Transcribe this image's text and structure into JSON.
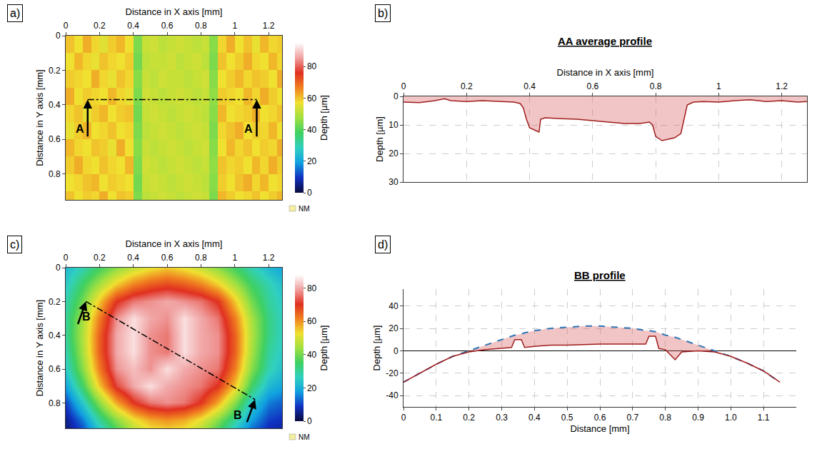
{
  "chart_data": [
    {
      "panel": "a)",
      "type": "heatmap",
      "x_label": "Distance in X axis [mm]",
      "y_label": "Distance in Y axis [mm]",
      "xlim": [
        0,
        1.28
      ],
      "ylim": [
        0.95,
        0
      ],
      "xticks": [
        0,
        0.2,
        0.4,
        0.6,
        0.8,
        1,
        1.2
      ],
      "yticks": [
        0,
        0.2,
        0.4,
        0.6,
        0.8
      ],
      "x": [
        0.025,
        0.075,
        0.125,
        0.175,
        0.225,
        0.275,
        0.325,
        0.375,
        0.425,
        0.475,
        0.525,
        0.575,
        0.625,
        0.675,
        0.725,
        0.775,
        0.825,
        0.875,
        0.925,
        0.975,
        1.025,
        1.075,
        1.125,
        1.175,
        1.225,
        1.275
      ],
      "y": [
        0.05,
        0.15,
        0.25,
        0.35,
        0.45,
        0.55,
        0.65,
        0.75,
        0.85,
        0.95
      ],
      "z": [
        [
          60,
          57,
          62,
          58,
          55,
          59,
          61,
          57,
          44,
          52,
          53,
          51,
          52,
          53,
          52,
          51,
          52,
          45,
          58,
          62,
          57,
          60,
          56,
          61,
          58,
          59
        ],
        [
          57,
          61,
          58,
          56,
          60,
          58,
          57,
          59,
          43,
          51,
          52,
          52,
          53,
          51,
          52,
          53,
          51,
          44,
          60,
          57,
          59,
          62,
          58,
          57,
          61,
          58
        ],
        [
          59,
          58,
          57,
          62,
          58,
          56,
          60,
          58,
          45,
          52,
          51,
          53,
          52,
          52,
          51,
          52,
          53,
          45,
          57,
          59,
          61,
          58,
          60,
          59,
          57,
          62
        ],
        [
          62,
          57,
          59,
          58,
          57,
          61,
          58,
          56,
          44,
          53,
          52,
          51,
          52,
          53,
          52,
          51,
          52,
          46,
          59,
          58,
          57,
          61,
          58,
          62,
          59,
          57
        ],
        [
          58,
          60,
          56,
          59,
          61,
          57,
          59,
          60,
          43,
          52,
          53,
          52,
          51,
          52,
          53,
          52,
          51,
          45,
          61,
          57,
          58,
          59,
          62,
          57,
          58,
          60
        ],
        [
          56,
          59,
          61,
          57,
          58,
          60,
          57,
          58,
          44,
          51,
          52,
          53,
          52,
          51,
          52,
          53,
          52,
          44,
          58,
          60,
          62,
          57,
          59,
          58,
          61,
          57
        ],
        [
          61,
          58,
          57,
          60,
          59,
          56,
          62,
          57,
          45,
          52,
          51,
          52,
          53,
          52,
          51,
          52,
          53,
          45,
          57,
          61,
          58,
          60,
          57,
          59,
          58,
          62
        ],
        [
          59,
          62,
          58,
          57,
          60,
          58,
          57,
          61,
          44,
          53,
          52,
          51,
          52,
          53,
          52,
          51,
          52,
          46,
          60,
          58,
          59,
          57,
          61,
          58,
          62,
          59
        ],
        [
          57,
          58,
          60,
          61,
          57,
          59,
          58,
          57,
          43,
          52,
          53,
          52,
          51,
          52,
          53,
          52,
          51,
          45,
          59,
          57,
          60,
          62,
          58,
          61,
          57,
          58
        ],
        [
          60,
          57,
          59,
          58,
          62,
          57,
          60,
          59,
          44,
          51,
          52,
          53,
          52,
          51,
          52,
          53,
          52,
          44,
          61,
          59,
          57,
          58,
          60,
          57,
          59,
          61
        ]
      ],
      "colorbar": {
        "title": "Depth [µm]",
        "range": [
          0,
          95
        ],
        "ticks": [
          0,
          20,
          40,
          60,
          80
        ]
      },
      "missing_label": "NM",
      "section": {
        "label": "A",
        "x": [
          0.13,
          1.13
        ],
        "y": [
          0.37,
          0.37
        ]
      }
    },
    {
      "panel": "b)",
      "type": "line",
      "title": "AA average profile",
      "x_label": "Distance in X axis [mm]",
      "y_label": "Depth [µm]",
      "xlim": [
        0,
        1.28
      ],
      "ylim": [
        30,
        0
      ],
      "xticks": [
        0,
        0.2,
        0.4,
        0.6,
        0.8,
        1,
        1.2
      ],
      "yticks": [
        0,
        10,
        20,
        30
      ],
      "grid": true,
      "color": "#a01c1c",
      "x": [
        0,
        0.05,
        0.1,
        0.13,
        0.15,
        0.2,
        0.25,
        0.3,
        0.35,
        0.37,
        0.38,
        0.39,
        0.4,
        0.42,
        0.43,
        0.435,
        0.45,
        0.5,
        0.55,
        0.6,
        0.65,
        0.7,
        0.75,
        0.78,
        0.79,
        0.8,
        0.82,
        0.84,
        0.86,
        0.88,
        0.89,
        0.9,
        0.92,
        0.95,
        1,
        1.05,
        1.1,
        1.15,
        1.2,
        1.25,
        1.28
      ],
      "values": [
        2,
        2.2,
        1.5,
        0.8,
        1.5,
        1.8,
        1.5,
        1.8,
        2,
        2.5,
        4,
        8,
        11,
        12,
        12.5,
        8,
        7.5,
        7.8,
        8,
        8.5,
        9,
        9.5,
        9.5,
        9,
        10,
        14,
        15.5,
        15,
        14.5,
        13,
        8,
        3,
        2,
        1.8,
        2,
        1.5,
        1.2,
        1.8,
        1.5,
        2,
        1.8
      ]
    },
    {
      "panel": "c)",
      "type": "heatmap",
      "x_label": "Distance in X axis [mm]",
      "y_label": "Distance in Y axis [mm]",
      "xlim": [
        0,
        1.28
      ],
      "ylim": [
        0.95,
        0
      ],
      "xticks": [
        0,
        0.2,
        0.4,
        0.6,
        0.8,
        1,
        1.2
      ],
      "yticks": [
        0,
        0.2,
        0.4,
        0.6,
        0.8
      ],
      "x": [
        0,
        0.1,
        0.2,
        0.3,
        0.4,
        0.5,
        0.6,
        0.7,
        0.8,
        0.9,
        1,
        1.1,
        1.2,
        1.3
      ],
      "y": [
        0,
        0.1,
        0.2,
        0.3,
        0.4,
        0.5,
        0.6,
        0.7,
        0.8,
        0.9,
        1
      ],
      "z": [
        [
          22,
          28,
          35,
          42,
          48,
          52,
          55,
          52,
          48,
          42,
          35,
          28,
          22,
          18
        ],
        [
          25,
          35,
          45,
          55,
          62,
          66,
          68,
          66,
          62,
          55,
          45,
          35,
          28,
          22
        ],
        [
          28,
          40,
          55,
          70,
          76,
          78,
          80,
          78,
          76,
          70,
          55,
          40,
          30,
          24
        ],
        [
          30,
          45,
          62,
          78,
          85,
          80,
          78,
          85,
          80,
          76,
          62,
          45,
          32,
          25
        ],
        [
          30,
          46,
          65,
          80,
          85,
          78,
          76,
          85,
          80,
          78,
          65,
          46,
          32,
          25
        ],
        [
          28,
          45,
          65,
          80,
          85,
          78,
          76,
          85,
          80,
          78,
          65,
          45,
          30,
          24
        ],
        [
          25,
          42,
          62,
          78,
          82,
          78,
          85,
          80,
          78,
          76,
          62,
          42,
          28,
          22
        ],
        [
          18,
          35,
          55,
          72,
          80,
          85,
          80,
          78,
          76,
          70,
          55,
          35,
          22,
          18
        ],
        [
          10,
          25,
          42,
          58,
          70,
          76,
          78,
          76,
          70,
          58,
          42,
          25,
          15,
          12
        ],
        [
          5,
          15,
          30,
          42,
          52,
          58,
          60,
          58,
          52,
          42,
          30,
          18,
          10,
          8
        ],
        [
          3,
          8,
          20,
          32,
          42,
          48,
          50,
          48,
          42,
          32,
          20,
          10,
          6,
          5
        ]
      ],
      "colorbar": {
        "title": "Depth [µm]",
        "range": [
          0,
          88
        ],
        "ticks": [
          0,
          20,
          40,
          60,
          80
        ]
      },
      "missing_label": "NM",
      "section": {
        "label": "B",
        "x": [
          0.12,
          1.12
        ],
        "y": [
          0.2,
          0.78
        ]
      }
    },
    {
      "panel": "d)",
      "type": "line",
      "title": "BB profile",
      "x_label": "Distance [mm]",
      "y_label": "Depth [µm]",
      "xlim": [
        0,
        1.2
      ],
      "ylim": [
        -50,
        55
      ],
      "xticks": [
        0,
        0.1,
        0.2,
        0.3,
        0.4,
        0.5,
        0.6,
        0.7,
        0.8,
        0.9,
        {
          "value": 1,
          "label": "1.0"
        },
        1.1
      ],
      "yticks": [
        -40,
        -20,
        0,
        20,
        40
      ],
      "grid": true,
      "x": [
        0,
        0.05,
        0.1,
        0.15,
        0.2,
        0.25,
        0.3,
        0.33,
        0.34,
        0.36,
        0.37,
        0.4,
        0.45,
        0.5,
        0.55,
        0.6,
        0.65,
        0.7,
        0.74,
        0.75,
        0.77,
        0.78,
        0.8,
        0.83,
        0.85,
        0.9,
        0.95,
        1,
        1.05,
        1.1,
        1.15
      ],
      "series": [
        {
          "color": "#2e75b6",
          "line_style": "dash",
          "values": [
            -28,
            -20,
            -12,
            -5,
            0,
            5,
            10,
            13,
            14,
            15,
            16,
            18,
            20,
            21,
            22,
            22,
            21,
            20,
            18,
            18,
            17,
            16,
            14,
            12,
            10,
            5,
            0,
            -5,
            -11,
            -18,
            -28
          ]
        },
        {
          "color": "#a01c1c",
          "line_style": "solid",
          "values": [
            -28,
            -20,
            -12,
            -5,
            -1,
            1,
            2,
            3,
            10,
            10,
            3,
            4,
            5,
            5,
            5.5,
            6,
            6,
            6,
            6,
            13,
            13,
            2,
            1,
            -8,
            -1,
            0,
            -1,
            -5,
            -11,
            -18,
            -28
          ]
        }
      ]
    }
  ]
}
